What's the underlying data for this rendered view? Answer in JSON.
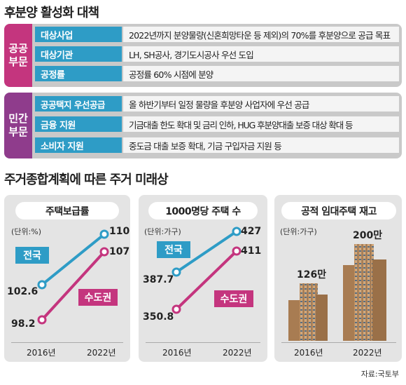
{
  "top_title": "후분양 활성화 대책",
  "public": {
    "label": "공공\n부문",
    "rows": [
      {
        "label": "대상사업",
        "value": "2022년까지 분양물량(신혼희망타운 등 제외)의 70%를 후분양으로 공급 목표"
      },
      {
        "label": "대상기관",
        "value": "LH, SH공사, 경기도시공사 우선 도입"
      },
      {
        "label": "공정률",
        "value": "공정률 60% 시점에 분양"
      }
    ]
  },
  "private": {
    "label": "민간\n부문",
    "rows": [
      {
        "label": "공공택지 우선공급",
        "value": "올 하반기부터 일정 물량을 후분양 사업자에 우선 공급"
      },
      {
        "label": "금융 지원",
        "value": "기금대출 한도 확대 및 금리 인하, HUG 후분양대출 보증 대상 확대 등"
      },
      {
        "label": "소비자 지원",
        "value": "중도금 대출 보증 확대, 기금 구입자금 지원 등"
      }
    ]
  },
  "second_title": "주거종합계획에 따른 주거 미래상",
  "source": "자료:국토부",
  "colors": {
    "nation": "#2e9cc6",
    "capital": "#c4357e",
    "purple": "#8f3c8c"
  },
  "chart_data": [
    {
      "type": "line",
      "title": "주택보급률",
      "unit": "(단위:%)",
      "x": [
        "2016년",
        "2022년"
      ],
      "series": [
        {
          "name": "전국",
          "values": [
            102.6,
            110
          ],
          "labels": [
            "102.6",
            "110"
          ]
        },
        {
          "name": "수도권",
          "values": [
            98.2,
            107
          ],
          "labels": [
            "98.2",
            "107"
          ]
        }
      ]
    },
    {
      "type": "line",
      "title": "1000명당 주택 수",
      "unit": "(단위:가구)",
      "x": [
        "2016년",
        "2022년"
      ],
      "series": [
        {
          "name": "전국",
          "values": [
            387.7,
            427
          ],
          "labels": [
            "387.7",
            "427"
          ]
        },
        {
          "name": "수도권",
          "values": [
            350.8,
            411
          ],
          "labels": [
            "350.8",
            "411"
          ]
        }
      ]
    },
    {
      "type": "bar",
      "title": "공적 임대주택 재고",
      "unit": "(단위:가구)",
      "categories": [
        "2016년",
        "2022년"
      ],
      "values": [
        1260000,
        2000000
      ],
      "labels": [
        "126만",
        "200만"
      ]
    }
  ]
}
